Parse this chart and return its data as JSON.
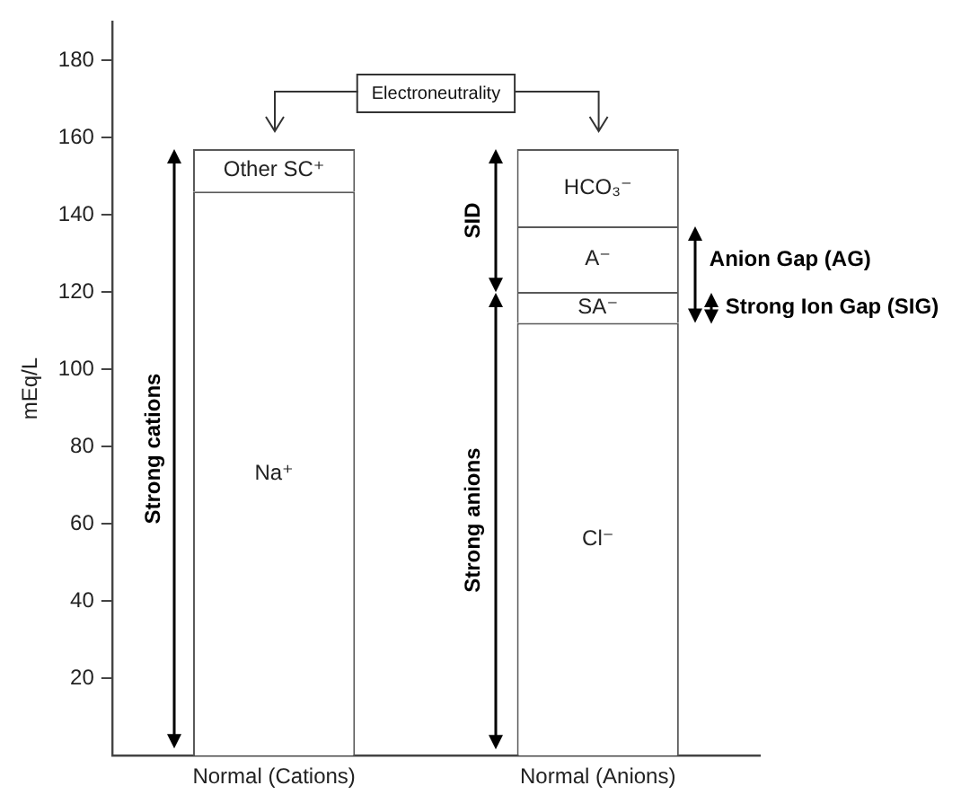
{
  "chart_data": {
    "type": "bar",
    "stacked": true,
    "categories": [
      "Normal (Cations)",
      "Normal (Anions)"
    ],
    "ylabel": "mEq/L",
    "ylim": [
      0,
      190
    ],
    "yticks": [
      20,
      40,
      60,
      80,
      100,
      120,
      140,
      160,
      180
    ],
    "grid": false,
    "legend": false,
    "series": [
      {
        "name": "Na⁺",
        "color": "#ffffff",
        "values": [
          146,
          null
        ]
      },
      {
        "name": "Other SC⁺",
        "color": "#ffffff",
        "values": [
          11,
          null
        ]
      },
      {
        "name": "Cl⁻",
        "color": "#ffffff",
        "values": [
          null,
          112
        ]
      },
      {
        "name": "SA⁻",
        "color": "#ffffff",
        "values": [
          null,
          8
        ]
      },
      {
        "name": "A⁻",
        "color": "#ffffff",
        "values": [
          null,
          17
        ]
      },
      {
        "name": "HCO₃⁻",
        "color": "#ffffff",
        "values": [
          null,
          20
        ]
      }
    ],
    "annotations": [
      "Electroneutrality",
      "Strong cations",
      "SID",
      "Strong anions",
      "Anion Gap (AG)",
      "Strong Ion Gap (SIG)"
    ]
  }
}
